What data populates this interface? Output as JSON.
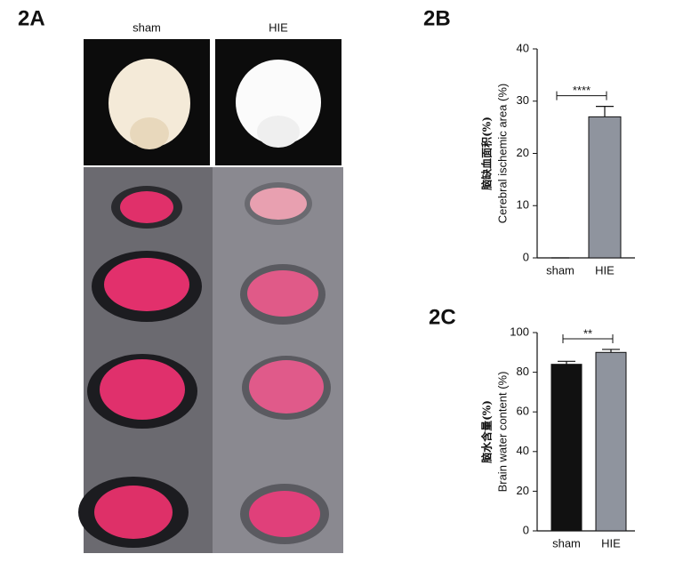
{
  "figure_a": {
    "label": "2A",
    "groups": [
      "sham",
      "HIE"
    ]
  },
  "chart_data": [
    {
      "type": "bar",
      "label": "2B",
      "ylabel": [
        "脑缺血面积(%)",
        "Cerebral ischemic area (%)"
      ],
      "categories": [
        "sham",
        "HIE"
      ],
      "values": [
        0,
        27
      ],
      "errors": [
        0,
        2
      ],
      "colors": [
        "#111111",
        "#8f949e"
      ],
      "ylim": [
        0,
        40
      ],
      "yticks": [
        0,
        10,
        20,
        30,
        40
      ],
      "annotation": "****"
    },
    {
      "type": "bar",
      "label": "2C",
      "ylabel": [
        "脑水含量(%)",
        "Brain water content (%)"
      ],
      "categories": [
        "sham",
        "HIE"
      ],
      "values": [
        84,
        90
      ],
      "errors": [
        1.5,
        1.5
      ],
      "colors": [
        "#111111",
        "#8f949e"
      ],
      "ylim": [
        0,
        100
      ],
      "yticks": [
        0,
        20,
        40,
        60,
        80,
        100
      ],
      "annotation": "**"
    }
  ]
}
